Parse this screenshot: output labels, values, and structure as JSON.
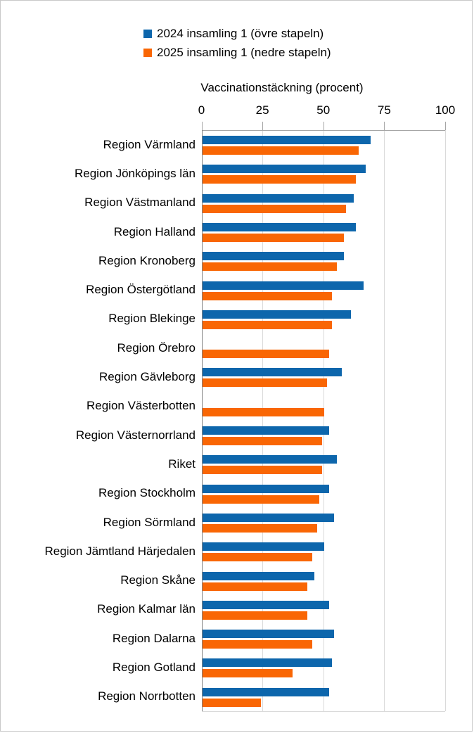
{
  "page": {
    "background": "#ffffff",
    "border_color": "#c9c9c9"
  },
  "legend": {
    "items": [
      {
        "label": "2024 insamling 1 (övre stapeln)",
        "color": "#0d66ac"
      },
      {
        "label": "2025 insamling 1 (nedre stapeln)",
        "color": "#f96604"
      }
    ]
  },
  "chart_data": {
    "type": "bar",
    "orientation": "horizontal-grouped",
    "title": "Vaccinationstäckning (procent)",
    "xlabel": "Vaccinationstäckning (procent)",
    "xlim": [
      0,
      100
    ],
    "x_ticks": [
      "0",
      "25",
      "50",
      "75",
      "100"
    ],
    "x_tick_values": [
      0,
      25,
      50,
      75,
      100
    ],
    "axis_position": "top",
    "grid": true,
    "legend_position": "top-center",
    "categories": [
      "Region Värmland",
      "Region Jönköpings län",
      "Region Västmanland",
      "Region Halland",
      "Region Kronoberg",
      "Region Östergötland",
      "Region Blekinge",
      "Region Örebro",
      "Region Gävleborg",
      "Region Västerbotten",
      "Region Västernorrland",
      "Riket",
      "Region Stockholm",
      "Region Sörmland",
      "Region Jämtland Härjedalen",
      "Region Skåne",
      "Region Kalmar län",
      "Region Dalarna",
      "Region Gotland",
      "Region Norrbotten"
    ],
    "series": [
      {
        "name": "2024 insamling 1 (övre stapeln)",
        "color": "#0d66ac",
        "values": [
          69,
          67,
          62,
          63,
          58,
          66,
          61,
          null,
          57,
          null,
          52,
          55,
          52,
          54,
          50,
          46,
          52,
          54,
          53,
          52
        ]
      },
      {
        "name": "2025 insamling 1 (nedre stapeln)",
        "color": "#f96604",
        "values": [
          64,
          63,
          59,
          58,
          55,
          53,
          53,
          52,
          51,
          50,
          49,
          49,
          48,
          47,
          45,
          43,
          43,
          45,
          37,
          24
        ]
      }
    ],
    "colors": {
      "gridline": "#dadada",
      "axis_line": "#a6a6a6",
      "zero_line": "#7f7f7f",
      "text": "#000000"
    }
  }
}
